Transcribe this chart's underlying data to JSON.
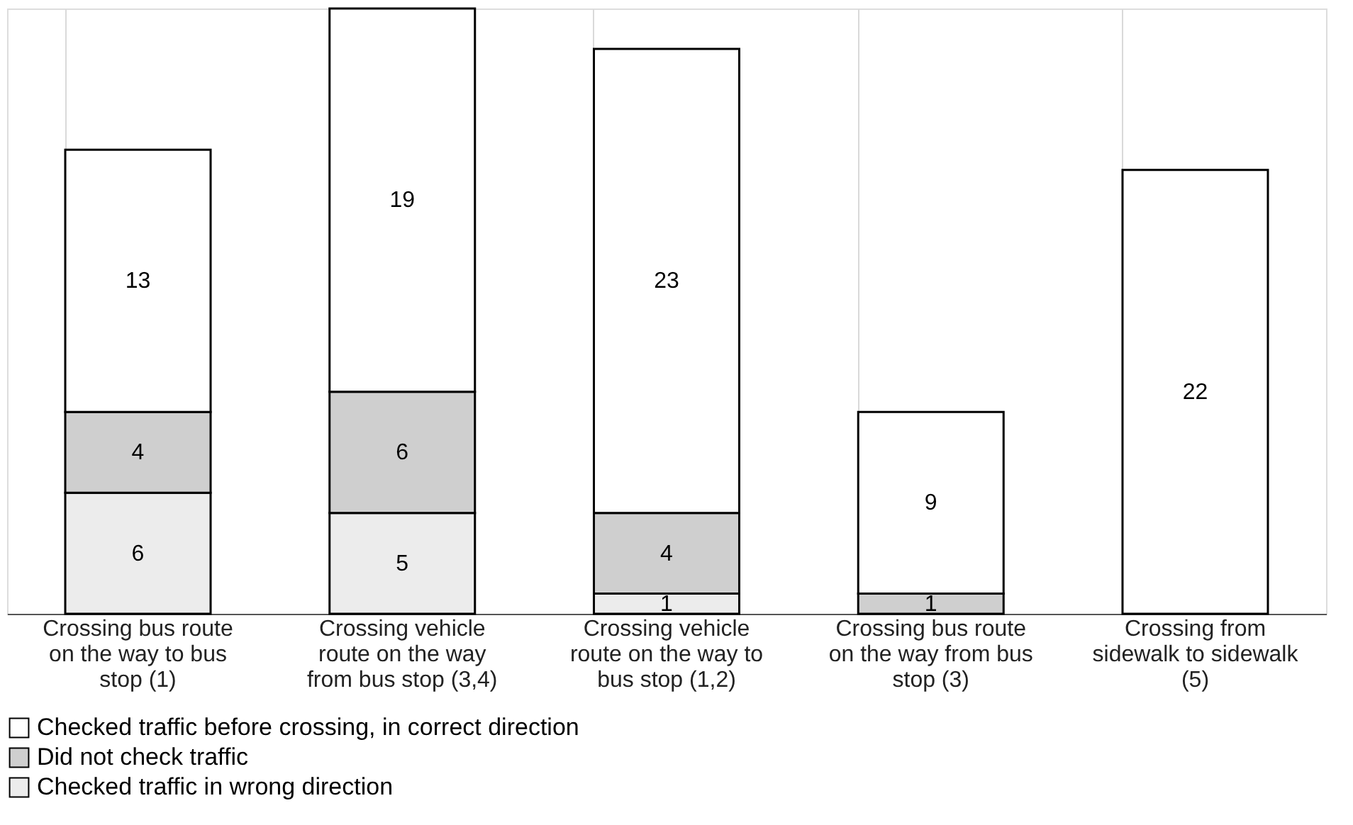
{
  "chart_data": {
    "type": "bar",
    "stacked": true,
    "data_labels": true,
    "tick_labels": "x",
    "grid": "x",
    "legend": "bottom",
    "categories": [
      "Crossing bus route on the way to bus stop (1)",
      "Crossing vehicle route on the way from bus stop (3,4)",
      "Crossing vehicle route on the way to bus stop (1,2)",
      "Crossing bus route on the way from bus stop (3)",
      "Crossing from sidewalk to sidewalk (5)"
    ],
    "series": [
      {
        "name": "Checked traffic in wrong direction",
        "color": "#ececec",
        "values": [
          6,
          5,
          1,
          null,
          null
        ]
      },
      {
        "name": "Did not check traffic",
        "color": "#cfcfcf",
        "values": [
          4,
          6,
          4,
          1,
          null
        ]
      },
      {
        "name": "Checked traffic before crossing, in correct direction",
        "color": "#ffffff",
        "values": [
          13,
          19,
          23,
          9,
          22
        ]
      }
    ]
  }
}
